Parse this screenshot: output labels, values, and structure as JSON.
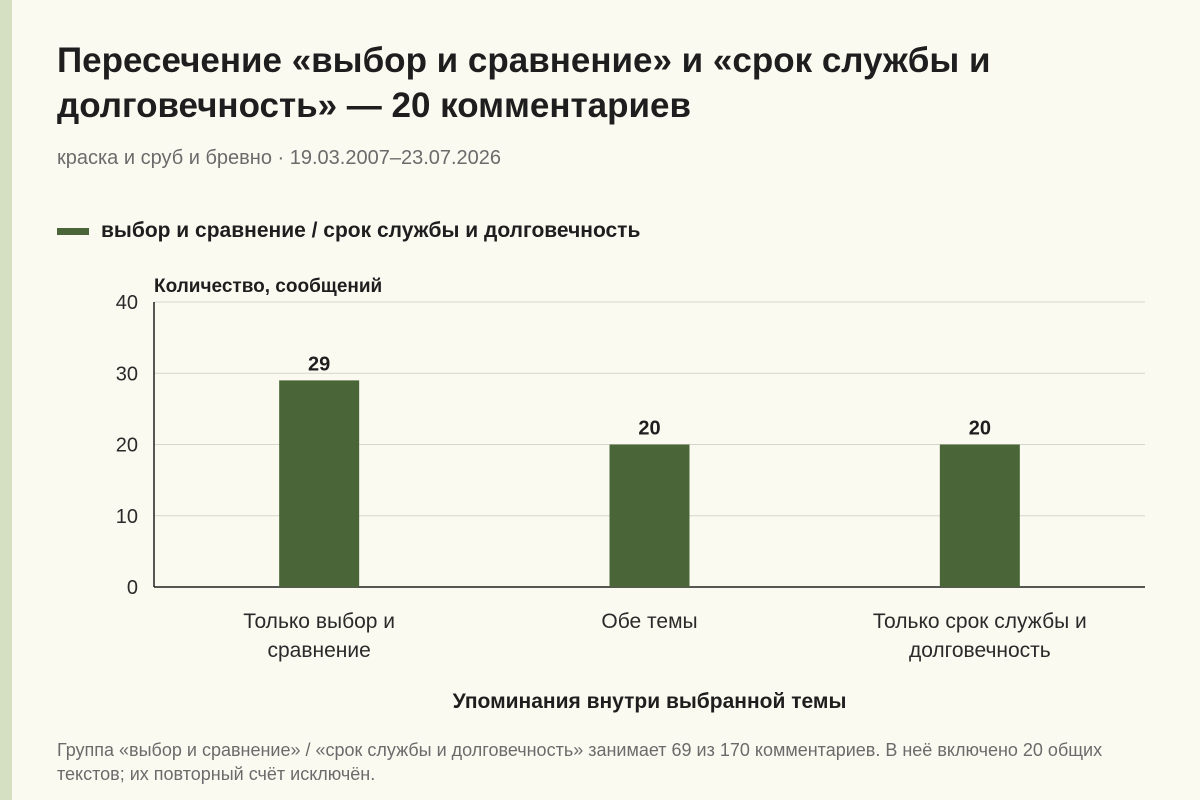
{
  "chart_data": {
    "type": "bar",
    "title": "Пересечение «выбор и сравнение» и «срок службы и долговечность» — 20 комментариев",
    "subtitle": "краска и сруб и бревно · 19.03.2007–23.07.2026",
    "legend": [
      {
        "label": "выбор и сравнение / срок службы и долговечность",
        "color": "#4a6638"
      }
    ],
    "legend_position": "top-left",
    "ylabel": "Количество, сообщений",
    "xlabel": "Упоминания внутри выбранной темы",
    "ylim": [
      0,
      40
    ],
    "yticks": [
      "0",
      "10",
      "20",
      "30",
      "40"
    ],
    "grid": true,
    "categories": [
      [
        "Только выбор и",
        "сравнение"
      ],
      [
        "Обе темы"
      ],
      [
        "Только срок службы и",
        "долговечность"
      ]
    ],
    "series": [
      {
        "values": [
          29,
          20,
          20
        ],
        "color": "#4a6638"
      }
    ]
  },
  "note": "Группа «выбор и сравнение» / «срок службы и долговечность» занимает 69 из 170 комментариев. В неё включено 20 общих текстов; их повторный счёт исключён."
}
